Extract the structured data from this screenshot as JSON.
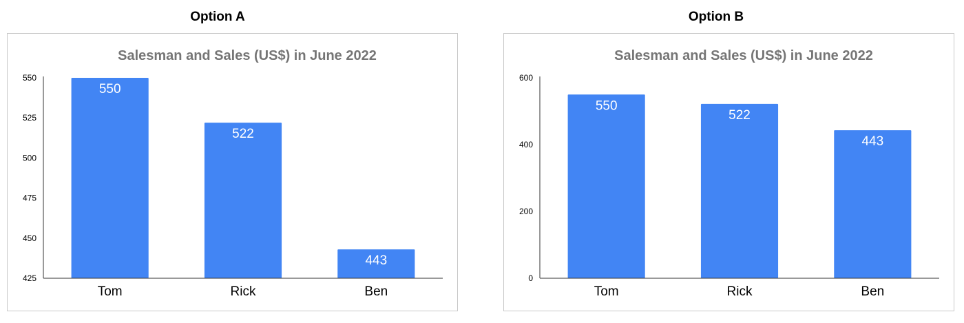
{
  "headings": {
    "option_a": "Option A",
    "option_b": "Option B"
  },
  "colors": {
    "bar": "#4285F4",
    "title": "#757575"
  },
  "chart_data": [
    {
      "type": "bar",
      "title": "Salesman and Sales (US$) in June 2022",
      "xlabel": "",
      "ylabel": "",
      "categories": [
        "Tom",
        "Rick",
        "Ben"
      ],
      "values": [
        550,
        522,
        443
      ],
      "data_labels": [
        "550",
        "522",
        "443"
      ],
      "ylim": [
        425,
        550
      ],
      "yticks": [
        425,
        450,
        475,
        500,
        525,
        550
      ],
      "grid": false,
      "legend": "none"
    },
    {
      "type": "bar",
      "title": "Salesman and Sales (US$) in June 2022",
      "xlabel": "",
      "ylabel": "",
      "categories": [
        "Tom",
        "Rick",
        "Ben"
      ],
      "values": [
        550,
        522,
        443
      ],
      "data_labels": [
        "550",
        "522",
        "443"
      ],
      "ylim": [
        0,
        600
      ],
      "yticks": [
        0,
        200,
        400,
        600
      ],
      "grid": false,
      "legend": "none"
    }
  ]
}
